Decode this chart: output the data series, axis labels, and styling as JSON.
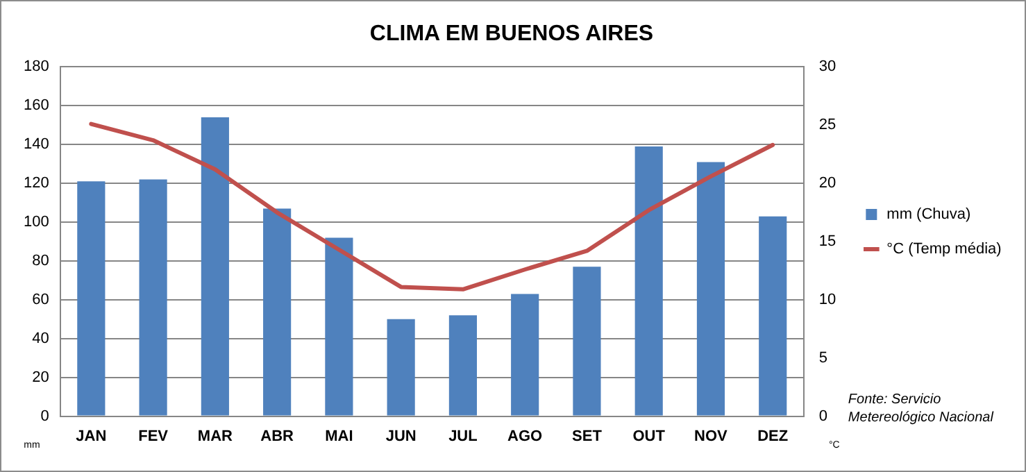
{
  "chart_data": {
    "type": "bar",
    "title": "CLIMA EM BUENOS AIRES",
    "ylabel": "mm",
    "y2label": "°C",
    "categories": [
      "JAN",
      "FEV",
      "MAR",
      "ABR",
      "MAI",
      "JUN",
      "JUL",
      "AGO",
      "SET",
      "OUT",
      "NOV",
      "DEZ"
    ],
    "series": [
      {
        "name": "mm (Chuva)",
        "color": "#4f81bd",
        "values": [
          121,
          122,
          154,
          107,
          92,
          50,
          52,
          63,
          77,
          139,
          131,
          103
        ]
      },
      {
        "name": "°C (Temp média)",
        "type": "line",
        "axis": "y2",
        "color": "#c0504d",
        "values": [
          25.1,
          23.7,
          21.2,
          17.5,
          14.3,
          11.1,
          10.9,
          12.6,
          14.2,
          17.7,
          20.6,
          23.3
        ]
      }
    ],
    "ylim": [
      0,
      180
    ],
    "yticks": [
      0,
      20,
      40,
      60,
      80,
      100,
      120,
      140,
      160,
      180
    ],
    "y2lim": [
      0,
      30
    ],
    "y2ticks": [
      0,
      5,
      10,
      15,
      20,
      25,
      30
    ],
    "grid": "y",
    "legend": "right",
    "marker": "none",
    "line_style": "solid",
    "annotations": [
      "Fonte: Servicio Metereológico Nacional"
    ]
  }
}
